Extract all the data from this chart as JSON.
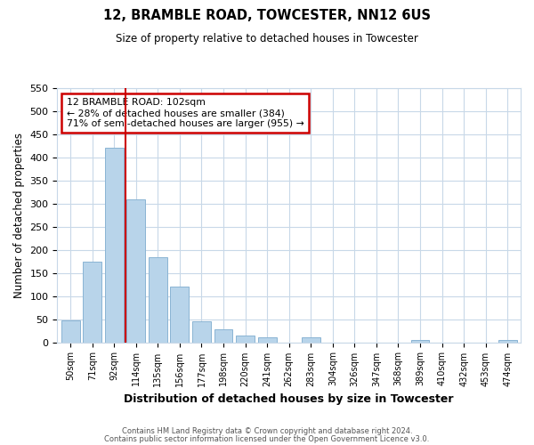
{
  "title": "12, BRAMBLE ROAD, TOWCESTER, NN12 6US",
  "subtitle": "Size of property relative to detached houses in Towcester",
  "xlabel": "Distribution of detached houses by size in Towcester",
  "ylabel": "Number of detached properties",
  "categories": [
    "50sqm",
    "71sqm",
    "92sqm",
    "114sqm",
    "135sqm",
    "156sqm",
    "177sqm",
    "198sqm",
    "220sqm",
    "241sqm",
    "262sqm",
    "283sqm",
    "304sqm",
    "326sqm",
    "347sqm",
    "368sqm",
    "389sqm",
    "410sqm",
    "432sqm",
    "453sqm",
    "474sqm"
  ],
  "values": [
    47,
    175,
    420,
    310,
    185,
    120,
    45,
    28,
    14,
    10,
    0,
    11,
    0,
    0,
    0,
    0,
    4,
    0,
    0,
    0,
    4
  ],
  "bar_color": "#b8d4ea",
  "bar_edge_color": "#8ab4d4",
  "property_line_x": 2.5,
  "property_line_color": "#cc0000",
  "annotation_text": "12 BRAMBLE ROAD: 102sqm\n← 28% of detached houses are smaller (384)\n71% of semi-detached houses are larger (955) →",
  "annotation_box_color": "#ffffff",
  "annotation_box_edge": "#cc0000",
  "ylim": [
    0,
    550
  ],
  "yticks": [
    0,
    50,
    100,
    150,
    200,
    250,
    300,
    350,
    400,
    450,
    500,
    550
  ],
  "footer_line1": "Contains HM Land Registry data © Crown copyright and database right 2024.",
  "footer_line2": "Contains public sector information licensed under the Open Government Licence v3.0.",
  "bg_color": "#ffffff",
  "grid_color": "#c8d8e8"
}
